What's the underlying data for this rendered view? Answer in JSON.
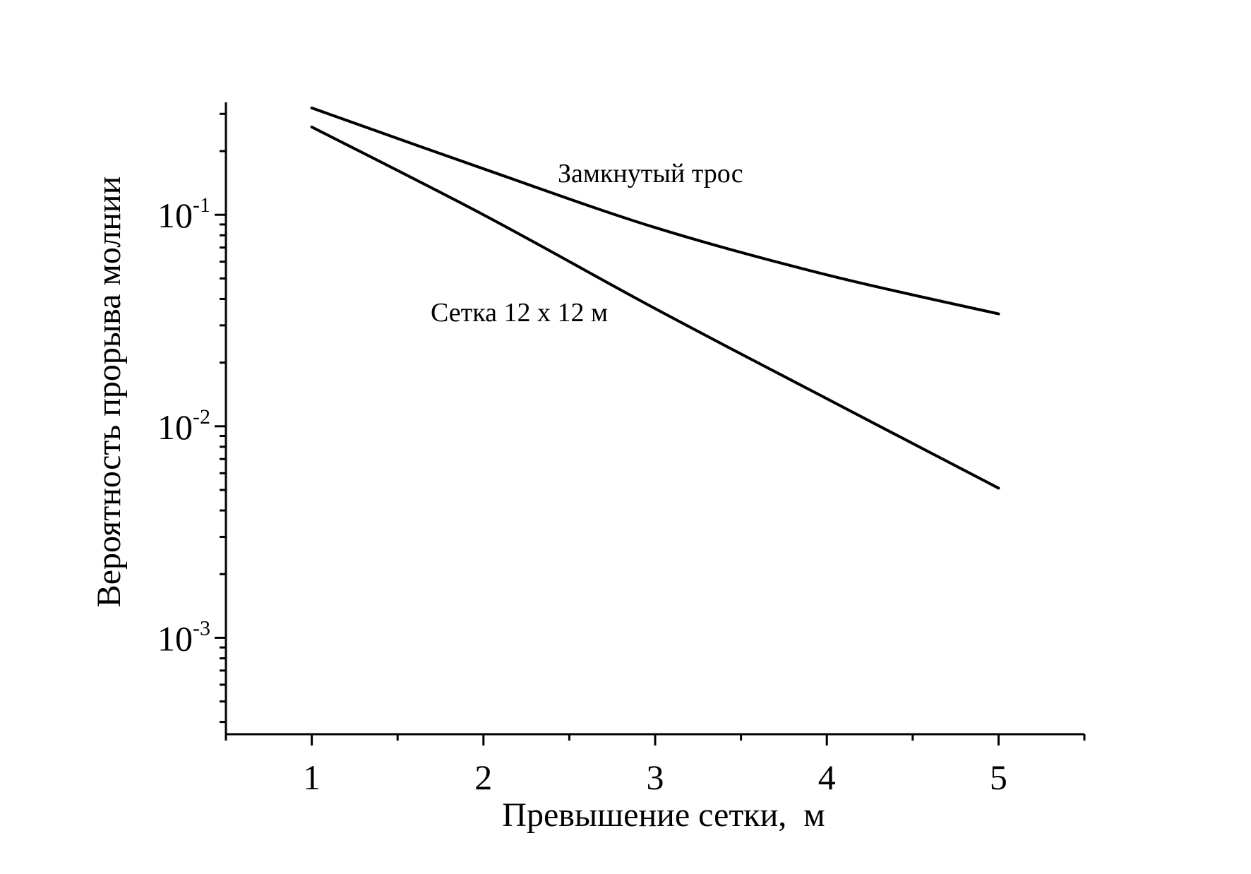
{
  "chart_data": {
    "type": "line",
    "xlabel": "Превышение сетки,  м",
    "ylabel": "Вероятность прорыва молнии",
    "x_ticks": [
      "1",
      "2",
      "3",
      "4",
      "5"
    ],
    "y_ticks": [
      {
        "base": "10",
        "exp": "-1",
        "value": 0.1
      },
      {
        "base": "10",
        "exp": "-2",
        "value": 0.01
      },
      {
        "base": "10",
        "exp": "-3",
        "value": 0.001
      }
    ],
    "y_scale": "log",
    "xlim": [
      0.5,
      5.5
    ],
    "ylim": [
      0.00035,
      0.34
    ],
    "grid": false,
    "series": [
      {
        "name": "Замкнутый трос",
        "x": [
          1,
          2,
          3,
          4,
          5
        ],
        "y": [
          0.32,
          0.165,
          0.087,
          0.052,
          0.034
        ]
      },
      {
        "name": "Сетка 12 х 12 м",
        "x": [
          1,
          2,
          3,
          4,
          5
        ],
        "y": [
          0.26,
          0.1,
          0.036,
          0.0135,
          0.0051
        ]
      }
    ]
  }
}
